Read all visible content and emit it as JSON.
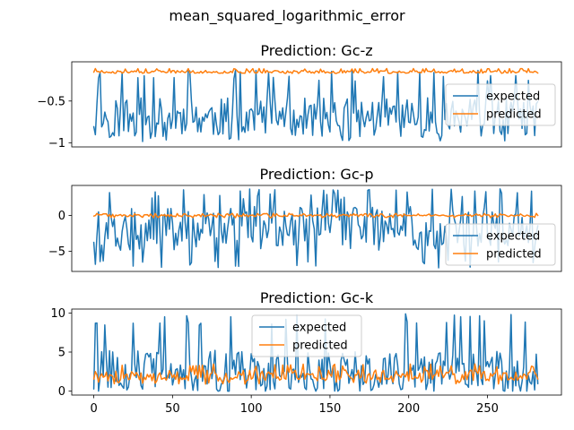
{
  "figure_title": "mean_squared_logarithmic_error",
  "chart_data": [
    {
      "type": "line",
      "title": "Prediction: Gc-z",
      "xlim": [
        -14,
        297
      ],
      "ylim": [
        -1.05,
        -0.03
      ],
      "yticks": [
        -1.0,
        -0.5
      ],
      "xticks_visible": false,
      "legend": "right",
      "series": [
        {
          "name": "expected",
          "color": "#1f77b4",
          "x_start": 0,
          "x_end": 282,
          "min": -1.0,
          "max": -0.13,
          "mean": -0.7,
          "seed": 11
        },
        {
          "name": "predicted",
          "color": "#ff7f0e",
          "x_start": 0,
          "x_end": 282,
          "min": -0.17,
          "max": -0.11,
          "mean": -0.15,
          "seed": 12
        }
      ]
    },
    {
      "type": "line",
      "title": "Prediction: Gc-p",
      "xlim": [
        -14,
        297
      ],
      "ylim": [
        -7.8,
        4.2
      ],
      "yticks": [
        -5,
        0
      ],
      "xticks_visible": false,
      "legend": "lower right",
      "series": [
        {
          "name": "expected",
          "color": "#1f77b4",
          "x_start": 0,
          "x_end": 282,
          "min": -7.3,
          "max": 3.8,
          "mean": -1.8,
          "seed": 21
        },
        {
          "name": "predicted",
          "color": "#ff7f0e",
          "x_start": 0,
          "x_end": 282,
          "min": -0.3,
          "max": 0.3,
          "mean": 0.0,
          "seed": 22
        }
      ]
    },
    {
      "type": "line",
      "title": "Prediction: Gc-k",
      "xlim": [
        -14,
        297
      ],
      "ylim": [
        -0.5,
        10.5
      ],
      "yticks": [
        0,
        5,
        10
      ],
      "xticks": [
        0,
        50,
        100,
        150,
        200,
        250
      ],
      "xticks_visible": true,
      "legend": "upper center",
      "series": [
        {
          "name": "expected",
          "color": "#1f77b4",
          "x_start": 0,
          "x_end": 282,
          "min": 0.0,
          "max": 9.9,
          "mean": 2.5,
          "seed": 31
        },
        {
          "name": "predicted",
          "color": "#ff7f0e",
          "x_start": 0,
          "x_end": 282,
          "min": 0.9,
          "max": 3.5,
          "mean": 2.0,
          "seed": 32
        }
      ]
    }
  ]
}
